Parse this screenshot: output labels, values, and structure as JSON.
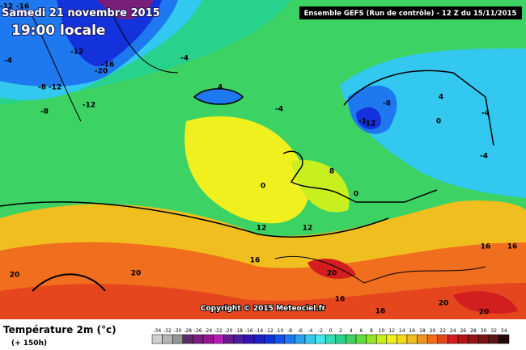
{
  "header": {
    "date": "Samedi 21 novembre 2015",
    "time": "19:00 locale",
    "run": "Ensemble GEFS  (Run de contrôle)  - 12 Z du 15/11/2015"
  },
  "map": {
    "labels": [
      -12,
      -16,
      -12,
      -20,
      -16,
      -12,
      -8,
      -12,
      -4,
      -8,
      -4,
      -4,
      -8,
      -1,
      12,
      0,
      4,
      -4,
      -4,
      0,
      4,
      8,
      0,
      12,
      12,
      16,
      20,
      20,
      20,
      16,
      16,
      20,
      16,
      20,
      16
    ]
  },
  "copyright": "Copyright © 2015 Meteociel.fr",
  "legend": {
    "title": "Température 2m (°c)",
    "subtitle": "(+ 150h)",
    "values": [
      -34,
      -32,
      -30,
      -28,
      -26,
      -24,
      -22,
      -20,
      -18,
      -16,
      -14,
      -12,
      -10,
      -8,
      -6,
      -4,
      -2,
      0,
      2,
      4,
      6,
      8,
      10,
      12,
      14,
      16,
      18,
      20,
      22,
      24,
      26,
      28,
      30,
      32,
      34
    ],
    "colors": [
      "#d0d0d0",
      "#b4b4b4",
      "#969696",
      "#5a2a6a",
      "#7a1e7a",
      "#961496",
      "#b41eb4",
      "#6a1a8a",
      "#4a1aa0",
      "#3214b4",
      "#1e1ec8",
      "#1432dc",
      "#1450f0",
      "#1e78f0",
      "#28a0f0",
      "#32c8f0",
      "#46e6f0",
      "#32dcb4",
      "#28d28c",
      "#3cd264",
      "#64dc3c",
      "#96e628",
      "#c8f01e",
      "#f0f01e",
      "#f0dc1e",
      "#f0be1e",
      "#f0961e",
      "#f06e1e",
      "#e6461e",
      "#d21e1e",
      "#b41414",
      "#961414",
      "#781414",
      "#5a1414",
      "#1e0a0a"
    ]
  }
}
